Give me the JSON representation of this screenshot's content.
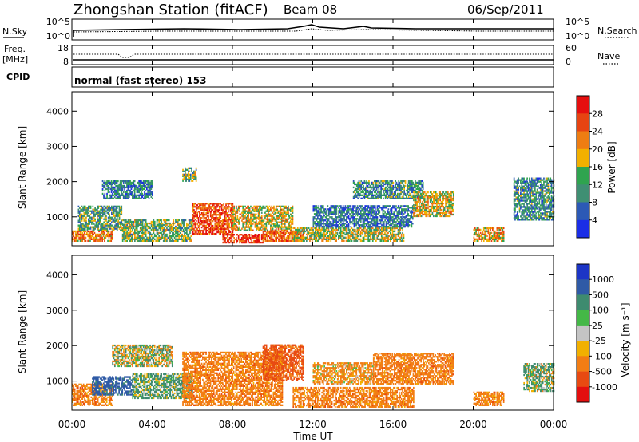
{
  "header": {
    "station": "Zhongshan Station (fitACF)",
    "beam": "Beam 08",
    "date": "06/Sep/2011"
  },
  "nsky_panel": {
    "left_label": "N.Sky",
    "right_label": "N.Search",
    "left_ticks": [
      "10^5",
      "10^0"
    ],
    "right_ticks": [
      "10^5",
      "10^0"
    ]
  },
  "freq_panel": {
    "left_label_1": "Freq.",
    "left_label_2": "[MHz]",
    "right_label": "Nave",
    "left_ticks": [
      "18",
      "8"
    ],
    "right_ticks": [
      "60",
      "0"
    ]
  },
  "cpid_panel": {
    "label": "CPID",
    "text": "normal (fast stereo) 153"
  },
  "x_axis": {
    "label": "Time UT",
    "ticks": [
      "00:00",
      "04:00",
      "08:00",
      "12:00",
      "16:00",
      "20:00",
      "00:00"
    ]
  },
  "y_axis": {
    "label": "Slant Range [km]",
    "ticks": [
      "1000",
      "2000",
      "3000",
      "4000"
    ]
  },
  "colorbars": {
    "power": {
      "label": "Power [dB]",
      "ticks": [
        "4",
        "8",
        "12",
        "16",
        "20",
        "24",
        "28"
      ],
      "colors": [
        "#1b2ee6",
        "#2c59b5",
        "#3f8f73",
        "#2fa44f",
        "#f2b000",
        "#ee7d12",
        "#e74412",
        "#e50f0f"
      ]
    },
    "velocity": {
      "label": "Velocity [m s⁻¹]",
      "ticks": [
        "1000",
        "500",
        "100",
        "25",
        "-25",
        "-100",
        "-500",
        "-1000"
      ],
      "colors": [
        "#1c35c6",
        "#2f5aa6",
        "#3e8b6f",
        "#44b847",
        "#c4c4c4",
        "#f2b000",
        "#f27d14",
        "#e84a12",
        "#e30f0f"
      ]
    }
  },
  "chart_data": [
    {
      "type": "heatmap",
      "title": "Power [dB]",
      "xlabel": "Time UT",
      "ylabel": "Slant Range [km]",
      "xlim": [
        0,
        24
      ],
      "ylim": [
        180,
        4550
      ],
      "value_range": [
        0,
        30
      ],
      "regions": [
        {
          "t0": 0.0,
          "t1": 2.0,
          "r0": 300,
          "r1": 600,
          "value": 22
        },
        {
          "t0": 0.3,
          "t1": 2.5,
          "r0": 600,
          "r1": 1300,
          "value": 12
        },
        {
          "t0": 1.5,
          "t1": 4.0,
          "r0": 1500,
          "r1": 2000,
          "value": 9
        },
        {
          "t0": 2.5,
          "t1": 6.0,
          "r0": 300,
          "r1": 900,
          "value": 14
        },
        {
          "t0": 5.5,
          "t1": 6.2,
          "r0": 2000,
          "r1": 2400,
          "value": 14
        },
        {
          "t0": 6.0,
          "t1": 8.0,
          "r0": 500,
          "r1": 1400,
          "value": 26
        },
        {
          "t0": 7.5,
          "t1": 9.5,
          "r0": 250,
          "r1": 500,
          "value": 28
        },
        {
          "t0": 8.0,
          "t1": 11.0,
          "r0": 600,
          "r1": 1300,
          "value": 18
        },
        {
          "t0": 9.5,
          "t1": 11.5,
          "r0": 300,
          "r1": 600,
          "value": 24
        },
        {
          "t0": 11.0,
          "t1": 16.5,
          "r0": 300,
          "r1": 700,
          "value": 16
        },
        {
          "t0": 12.0,
          "t1": 17.0,
          "r0": 700,
          "r1": 1300,
          "value": 8
        },
        {
          "t0": 14.0,
          "t1": 17.5,
          "r0": 1500,
          "r1": 2000,
          "value": 10
        },
        {
          "t0": 17.0,
          "t1": 19.0,
          "r0": 1000,
          "r1": 1700,
          "value": 18
        },
        {
          "t0": 20.0,
          "t1": 21.5,
          "r0": 300,
          "r1": 700,
          "value": 20
        },
        {
          "t0": 22.0,
          "t1": 24.0,
          "r0": 900,
          "r1": 2100,
          "value": 10
        }
      ]
    },
    {
      "type": "heatmap",
      "title": "Velocity [m s⁻¹]",
      "xlabel": "Time UT",
      "ylabel": "Slant Range [km]",
      "xlim": [
        0,
        24
      ],
      "ylim": [
        180,
        4550
      ],
      "value_range": [
        -1000,
        1000
      ],
      "regions": [
        {
          "t0": 0.0,
          "t1": 2.0,
          "r0": 300,
          "r1": 900,
          "value": -300
        },
        {
          "t0": 1.0,
          "t1": 3.0,
          "r0": 600,
          "r1": 1100,
          "value": 700
        },
        {
          "t0": 2.0,
          "t1": 5.0,
          "r0": 1400,
          "r1": 2000,
          "value": 0
        },
        {
          "t0": 3.0,
          "t1": 6.0,
          "r0": 500,
          "r1": 1200,
          "value": 150
        },
        {
          "t0": 5.5,
          "t1": 10.5,
          "r0": 300,
          "r1": 1800,
          "value": -300
        },
        {
          "t0": 9.5,
          "t1": 11.5,
          "r0": 1000,
          "r1": 2000,
          "value": -600
        },
        {
          "t0": 11.0,
          "t1": 17.0,
          "r0": 250,
          "r1": 800,
          "value": -300
        },
        {
          "t0": 12.0,
          "t1": 15.0,
          "r0": 900,
          "r1": 1500,
          "value": -200
        },
        {
          "t0": 15.0,
          "t1": 19.0,
          "r0": 900,
          "r1": 1800,
          "value": -300
        },
        {
          "t0": 20.0,
          "t1": 21.5,
          "r0": 300,
          "r1": 700,
          "value": -300
        },
        {
          "t0": 22.5,
          "t1": 24.0,
          "r0": 700,
          "r1": 1500,
          "value": 100
        }
      ]
    }
  ]
}
